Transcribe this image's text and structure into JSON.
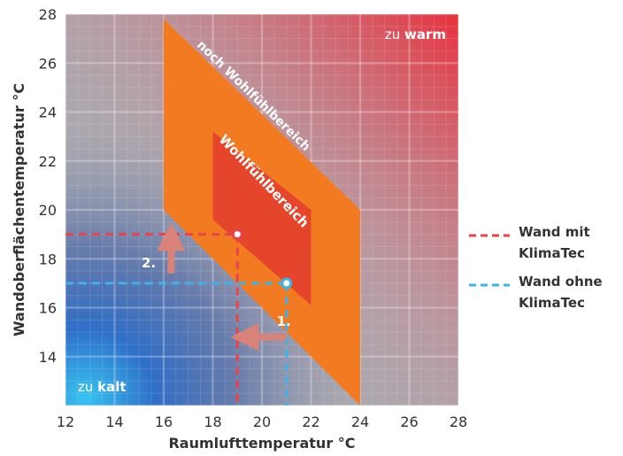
{
  "chart_data": {
    "type": "area",
    "xlabel": "Raumlufttemperatur °C",
    "ylabel": "Wandoberflächentemperatur °C",
    "xlim": [
      12,
      28
    ],
    "ylim": [
      12,
      28
    ],
    "x_ticks": [
      12,
      14,
      16,
      18,
      20,
      22,
      24,
      26,
      28
    ],
    "y_ticks": [
      14,
      16,
      18,
      20,
      22,
      24,
      26,
      28
    ],
    "grid": true,
    "zones": [
      {
        "name": "noch Wohlfühlbereich",
        "color": "#f27b22",
        "polygon": [
          [
            16,
            27.8
          ],
          [
            24,
            20
          ],
          [
            24,
            12
          ],
          [
            16,
            20
          ]
        ]
      },
      {
        "name": "Wohlfühlbereich",
        "color": "#e4452b",
        "polygon": [
          [
            18,
            23.2
          ],
          [
            22,
            20
          ],
          [
            22,
            16.1
          ],
          [
            18,
            19.6
          ]
        ]
      }
    ],
    "corner_labels": [
      {
        "prefix": "zu ",
        "word": "warm",
        "position": "top-right"
      },
      {
        "prefix": "zu ",
        "word": "kalt",
        "position": "bottom-left"
      }
    ],
    "series": [
      {
        "name": "Wand mit KlimaTec",
        "color": "#e8434a",
        "point": [
          19,
          19
        ],
        "step": "2."
      },
      {
        "name": "Wand ohne KlimaTec",
        "color": "#3fb2e8",
        "point": [
          21,
          17
        ],
        "step": "1."
      }
    ],
    "legend": {
      "position": "right",
      "entries": [
        {
          "lines": [
            "Wand mit",
            "KlimaTec"
          ],
          "color": "#e8434a"
        },
        {
          "lines": [
            "Wand ohne",
            "KlimaTec"
          ],
          "color": "#3fb2e8"
        }
      ]
    },
    "arrows": [
      {
        "step": "1.",
        "direction": "left",
        "from": [
          21,
          14.8
        ],
        "to": [
          19.3,
          14.8
        ]
      },
      {
        "step": "2.",
        "direction": "up",
        "from": [
          16.3,
          17.4
        ],
        "to": [
          16.3,
          18.9
        ]
      }
    ]
  }
}
